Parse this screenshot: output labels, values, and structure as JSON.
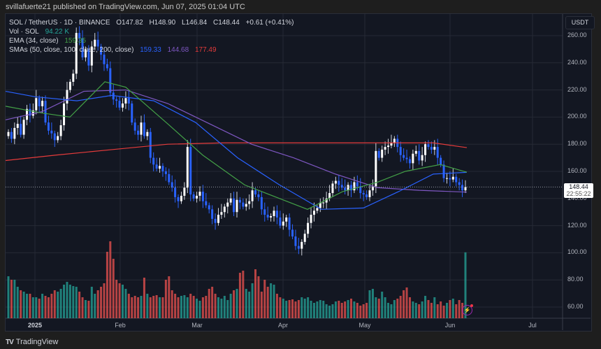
{
  "publisher": "svillafuerte21 published on TradingView.com, Jun 07, 2025 01:04 UTC",
  "legend": {
    "symbol": "SOL / TetherUS · 1D · BINANCE",
    "open": "O147.82",
    "high": "H148.90",
    "low": "L146.84",
    "close": "C148.44",
    "change": "+0.61 (+0.41%)",
    "vol_label": "Vol · SOL",
    "vol_value": "94.22 K",
    "ema_label": "EMA (34, close)",
    "ema_value": "159.35",
    "sma_label": "SMAs (50, close, 100, close, 200, close)",
    "sma50_value": "159.33",
    "sma100_value": "144.68",
    "sma200_value": "177.49"
  },
  "currency_button": "USDT",
  "price_tag": {
    "price": "148.44",
    "countdown": "22:55:22"
  },
  "footer": {
    "logo": "TV",
    "brand": "TradingView"
  },
  "colors": {
    "bg": "#131722",
    "up_candle": "#ffffff",
    "down_candle": "#2962ff",
    "vol_up": "#26a69a",
    "vol_down": "#ef5350",
    "ema34": "#43a047",
    "sma50": "#2962ff",
    "sma100": "#7e57c2",
    "sma200": "#e53b3b"
  },
  "chart_data": {
    "type": "candlestick",
    "title": "SOL / TetherUS · 1D · BINANCE",
    "ylabel": "USDT",
    "ylim": [
      55,
      270
    ],
    "grid": true,
    "y_ticks": [
      "260.00",
      "240.00",
      "220.00",
      "200.00",
      "180.00",
      "160.00",
      "140.00",
      "120.00",
      "100.00",
      "80.00",
      "60.00"
    ],
    "x_ticks": [
      "2025",
      "Feb",
      "Mar",
      "Apr",
      "May",
      "Jun",
      "Jul"
    ],
    "last": {
      "open": 147.82,
      "high": 148.9,
      "low": 146.84,
      "close": 148.44,
      "change": 0.61,
      "change_pct": 0.41,
      "volume_k": 94.22
    },
    "indicators": {
      "EMA34": 159.35,
      "SMA50": 159.33,
      "SMA100": 144.68,
      "SMA200": 177.49
    },
    "closes_approx": [
      189,
      184,
      192,
      195,
      187,
      198,
      206,
      201,
      205,
      214,
      208,
      212,
      196,
      190,
      188,
      183,
      186,
      194,
      210,
      220,
      226,
      232,
      262,
      258,
      244,
      250,
      238,
      252,
      257,
      252,
      246,
      239,
      236,
      218,
      213,
      212,
      207,
      210,
      214,
      210,
      196,
      190,
      187,
      196,
      186,
      189,
      170,
      165,
      162,
      164,
      160,
      158,
      152,
      148,
      141,
      138,
      142,
      148,
      178,
      143,
      140,
      142,
      145,
      138,
      135,
      132,
      125,
      122,
      128,
      130,
      134,
      137,
      140,
      130,
      139,
      137,
      134,
      136,
      138,
      146,
      143,
      141,
      132,
      128,
      126,
      127,
      131,
      126,
      120,
      123,
      126,
      117,
      112,
      105,
      103,
      108,
      114,
      122,
      128,
      131,
      133,
      137,
      137,
      140,
      144,
      151,
      153,
      150,
      148,
      146,
      150,
      146,
      152,
      149,
      144,
      143,
      141,
      146,
      149,
      175,
      170,
      176,
      178,
      179,
      181,
      184,
      178,
      172,
      170,
      169,
      166,
      173,
      175,
      168,
      172,
      180,
      178,
      176,
      178,
      170,
      165,
      155,
      155,
      154,
      156,
      152,
      150,
      146,
      148.44
    ],
    "volume_approx_k": [
      60,
      55,
      55,
      45,
      40,
      38,
      35,
      35,
      30,
      30,
      28,
      35,
      32,
      30,
      35,
      40,
      38,
      42,
      48,
      52,
      48,
      46,
      45,
      38,
      30,
      26,
      25,
      45,
      35,
      40,
      45,
      50,
      95,
      110,
      85,
      55,
      50,
      48,
      42,
      35,
      30,
      32,
      30,
      32,
      58,
      35,
      30,
      32,
      33,
      30,
      30,
      55,
      60,
      40,
      35,
      30,
      32,
      33,
      30,
      35,
      32,
      28,
      25,
      30,
      32,
      42,
      45,
      35,
      30,
      28,
      32,
      26,
      35,
      40,
      42,
      65,
      68,
      42,
      38,
      50,
      70,
      60,
      38,
      55,
      45,
      50,
      48,
      35,
      30,
      28,
      25,
      26,
      27,
      24,
      26,
      30,
      28,
      30,
      25,
      22,
      24,
      26,
      25,
      20,
      18,
      20,
      24,
      25,
      22,
      24,
      26,
      28,
      24,
      22,
      18,
      20,
      22,
      40,
      42,
      30,
      28,
      38,
      30,
      22,
      20,
      26,
      28,
      32,
      40,
      44,
      30,
      24,
      22,
      20,
      24,
      32,
      26,
      22,
      30,
      20,
      24,
      18,
      22,
      26,
      28,
      20,
      26,
      22,
      94.22
    ]
  }
}
